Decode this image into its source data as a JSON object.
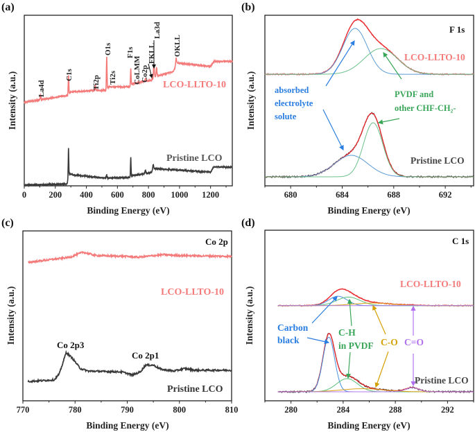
{
  "figure": {
    "panel_labels": [
      "(a)",
      "(b)",
      "(c)",
      "(d)"
    ]
  },
  "chart_data": [
    {
      "type": "line",
      "panel": "(a)",
      "xlabel": "Binding Energy (eV)",
      "ylabel": "Intensity (a.u.)",
      "xlim": [
        0,
        1340
      ],
      "ylim": [
        0,
        100
      ],
      "xticks": [
        0,
        200,
        400,
        600,
        800,
        1000,
        1200
      ],
      "minor_step": 100,
      "peak_labels": [
        "La4d",
        "C1s",
        "Ti2p",
        "O1s",
        "Ti2s",
        "F1s",
        "CoLMM",
        "Co2p",
        "FKLL",
        "La3d",
        "OKLL"
      ],
      "spectra": [
        {
          "name": "LCO-LLTO-10",
          "color": "#f47a7a",
          "baseline": [
            [
              0,
              49
            ],
            [
              280,
              53
            ],
            [
              300,
              55
            ],
            [
              455,
              56
            ],
            [
              525,
              56
            ],
            [
              545,
              58
            ],
            [
              680,
              58
            ],
            [
              700,
              60
            ],
            [
              820,
              62
            ],
            [
              840,
              64
            ],
            [
              960,
              67
            ],
            [
              985,
              72
            ],
            [
              1200,
              70
            ],
            [
              1222,
              73
            ],
            [
              1340,
              73
            ]
          ],
          "peaks": [
            [
              105,
              3,
              2
            ],
            [
              285,
              11.5,
              2
            ],
            [
              458,
              3,
              2
            ],
            [
              531,
              19,
              2
            ],
            [
              686,
              10,
              2
            ],
            [
              780,
              1.5,
              3
            ],
            [
              835,
              8,
              2.5
            ],
            [
              852,
              5,
              2.5
            ],
            [
              978,
              4,
              3
            ]
          ]
        },
        {
          "name": "Pristine LCO",
          "color": "#3a3a3a",
          "baseline": [
            [
              0,
              0.5
            ],
            [
              275,
              1
            ],
            [
              290,
              7
            ],
            [
              310,
              6.5
            ],
            [
              520,
              4.5
            ],
            [
              680,
              5
            ],
            [
              700,
              6
            ],
            [
              780,
              7
            ],
            [
              820,
              8
            ],
            [
              835,
              10
            ],
            [
              860,
              10
            ],
            [
              1200,
              8
            ],
            [
              1220,
              11
            ],
            [
              1340,
              11
            ]
          ],
          "peaks": [
            [
              284.8,
              17,
              1.8
            ],
            [
              531,
              2,
              2
            ],
            [
              686,
              11.5,
              1.8
            ],
            [
              780,
              2,
              3
            ],
            [
              830,
              3,
              3
            ]
          ]
        }
      ]
    },
    {
      "type": "line",
      "panel": "(b)",
      "title": "F 1s",
      "xlabel": "Binding Energy (eV)",
      "ylabel": "Intensity (a.u.)",
      "xlim": [
        678,
        694.2
      ],
      "ylim": [
        0,
        100
      ],
      "xticks": [
        680,
        684,
        688,
        692
      ],
      "minor_step": 2,
      "annotations": {
        "blue": [
          "absorbed",
          "electrolyte",
          "solute"
        ],
        "green": [
          "PVDF and",
          "other CHF-CH₂-"
        ]
      },
      "spectra": [
        {
          "name": "LCO-LLTO-10",
          "data_color": "#f47a7a",
          "fit_color": "#e8262b",
          "baseline": 65.4,
          "components": [
            {
              "label": "absorbed electrolyte solute",
              "center": 685.0,
              "amplitude": 26.9,
              "sigma": 0.95,
              "color": "#5b9bd5"
            },
            {
              "label": "PVDF and other CHF-CH2-",
              "center": 687.0,
              "amplitude": 15.1,
              "sigma": 1.3,
              "color": "#6cc08b"
            }
          ]
        },
        {
          "name": "Pristine LCO",
          "data_color": "#3a3a3a",
          "fit_color": "#e8262b",
          "baseline": 5.3,
          "components": [
            {
              "label": "absorbed electrolyte solute",
              "center": 684.7,
              "amplitude": 12.6,
              "sigma": 1.3,
              "color": "#5b9bd5"
            },
            {
              "label": "PVDF and other CHF-CH2-",
              "center": 686.4,
              "amplitude": 31.7,
              "sigma": 0.75,
              "color": "#6cc08b"
            }
          ]
        }
      ]
    },
    {
      "type": "line",
      "panel": "(c)",
      "title": "Co 2p",
      "xlabel": "Binding Energy (eV)",
      "ylabel": "Intensity (a.u.)",
      "xlim": [
        770,
        810
      ],
      "ylim": [
        0,
        100
      ],
      "xticks": [
        770,
        780,
        790,
        800,
        810
      ],
      "minor_step": 5,
      "peak_labels": [
        "Co 2p3",
        "Co 2p1"
      ],
      "spectra": [
        {
          "name": "LCO-LLTO-10",
          "color": "#f47a7a",
          "points": [
            [
              771,
              81.5
            ],
            [
              775,
              83
            ],
            [
              779,
              84.5
            ],
            [
              781.5,
              87.5
            ],
            [
              784,
              85.5
            ],
            [
              790,
              85
            ],
            [
              792,
              84.5
            ],
            [
              797,
              86
            ],
            [
              800,
              85.5
            ],
            [
              810,
              85
            ]
          ]
        },
        {
          "name": "Pristine LCO",
          "color": "#3a3a3a",
          "points": [
            [
              771,
              11.4
            ],
            [
              776,
              12.3
            ],
            [
              777,
              16
            ],
            [
              778.3,
              28.5
            ],
            [
              779.5,
              25
            ],
            [
              781,
              19
            ],
            [
              782.5,
              17.5
            ],
            [
              789,
              17
            ],
            [
              791,
              15.2
            ],
            [
              792.5,
              17
            ],
            [
              793.5,
              21
            ],
            [
              795,
              21
            ],
            [
              796.5,
              18.5
            ],
            [
              799,
              17.5
            ],
            [
              801,
              19
            ],
            [
              803,
              18
            ],
            [
              810,
              18
            ]
          ]
        }
      ]
    },
    {
      "type": "line",
      "panel": "(d)",
      "title": "C 1s",
      "xlabel": "Binding Energy (eV)",
      "ylabel": "Intensity (a.u.)",
      "xlim": [
        278,
        294
      ],
      "ylim": [
        0,
        100
      ],
      "xticks": [
        280,
        284,
        288,
        292
      ],
      "minor_step": 2,
      "annotations": {
        "blue": [
          "Carbon",
          "black"
        ],
        "green": [
          "C-H",
          "in PVDF"
        ],
        "orange": "C-O",
        "purple": "C=O"
      },
      "spectra": [
        {
          "name": "LCO-LLTO-10",
          "data_color": "#f47a7a",
          "fit_color": "#e8262b",
          "baseline": 55.8,
          "components": [
            {
              "label": "Carbon black",
              "center": 283.6,
              "amplitude": 5.5,
              "sigma": 0.7,
              "color": "#4a8fe0"
            },
            {
              "label": "C-H in PVDF",
              "center": 284.4,
              "amplitude": 5.0,
              "sigma": 0.9,
              "color": "#5cbf7a"
            },
            {
              "label": "C-O",
              "center": 286.3,
              "amplitude": 1.5,
              "sigma": 1.5,
              "color": "#d9a21a"
            },
            {
              "label": "C=O",
              "center": 289.3,
              "amplitude": 0.2,
              "sigma": 0.5,
              "color": "#b07ce8"
            }
          ]
        },
        {
          "name": "Pristine LCO",
          "data_color": "#3a3a3a",
          "fit_color": "#e8262b",
          "baseline": 5.3,
          "components": [
            {
              "label": "Carbon black",
              "center": 282.9,
              "amplitude": 32.0,
              "sigma": 0.45,
              "color": "#4a8fe0"
            },
            {
              "label": "C-H in PVDF",
              "center": 284.3,
              "amplitude": 7.7,
              "sigma": 0.8,
              "color": "#5cbf7a"
            },
            {
              "label": "C-O",
              "center": 285.5,
              "amplitude": 1.8,
              "sigma": 1.6,
              "color": "#d9a21a"
            },
            {
              "label": "C=O",
              "center": 289.3,
              "amplitude": 2.4,
              "sigma": 0.5,
              "color": "#b07ce8"
            }
          ]
        }
      ]
    }
  ]
}
